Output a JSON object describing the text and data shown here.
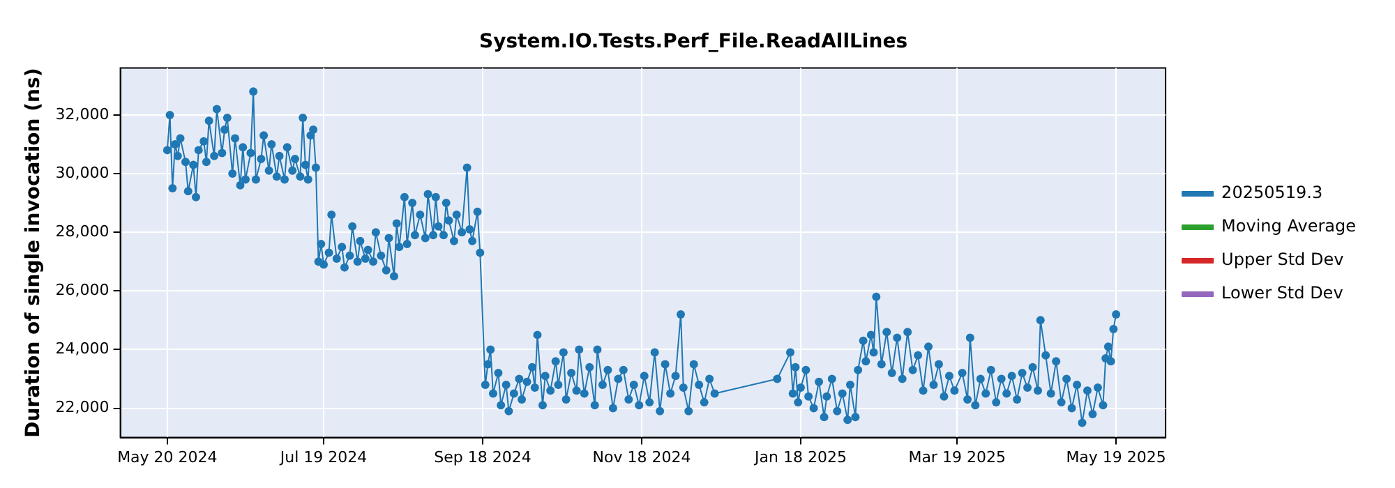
{
  "chart_data": {
    "type": "line",
    "title": "System.IO.Tests.Perf_File.ReadAllLines",
    "ylabel": "Duration of single invocation (ns)",
    "xlim": [
      "2024-05-02",
      "2025-06-07"
    ],
    "xticks": [
      {
        "value": "2024-05-20",
        "label": "May 20 2024"
      },
      {
        "value": "2024-07-19",
        "label": "Jul 19 2024"
      },
      {
        "value": "2024-09-18",
        "label": "Sep 18 2024"
      },
      {
        "value": "2024-11-18",
        "label": "Nov 18 2024"
      },
      {
        "value": "2025-01-18",
        "label": "Jan 18 2025"
      },
      {
        "value": "2025-03-19",
        "label": "Mar 19 2025"
      },
      {
        "value": "2025-05-19",
        "label": "May 19 2025"
      }
    ],
    "ylim": [
      21000,
      33600
    ],
    "yticks": [
      {
        "value": 22000,
        "label": "22,000"
      },
      {
        "value": 24000,
        "label": "24,000"
      },
      {
        "value": 26000,
        "label": "26,000"
      },
      {
        "value": 28000,
        "label": "28,000"
      },
      {
        "value": 30000,
        "label": "30,000"
      },
      {
        "value": 32000,
        "label": "32,000"
      }
    ],
    "grid": true,
    "legend": "right",
    "marker": "circle",
    "line_style": "solid",
    "series": [
      {
        "name": "20250519.3",
        "color": "#1f77b4",
        "x": [
          "2024-05-20",
          "2024-05-21",
          "2024-05-22",
          "2024-05-23",
          "2024-05-24",
          "2024-05-25",
          "2024-05-27",
          "2024-05-28",
          "2024-05-30",
          "2024-05-31",
          "2024-06-01",
          "2024-06-03",
          "2024-06-04",
          "2024-06-05",
          "2024-06-07",
          "2024-06-08",
          "2024-06-10",
          "2024-06-11",
          "2024-06-12",
          "2024-06-14",
          "2024-06-15",
          "2024-06-17",
          "2024-06-18",
          "2024-06-19",
          "2024-06-21",
          "2024-06-22",
          "2024-06-23",
          "2024-06-25",
          "2024-06-26",
          "2024-06-28",
          "2024-06-29",
          "2024-07-01",
          "2024-07-02",
          "2024-07-04",
          "2024-07-05",
          "2024-07-07",
          "2024-07-08",
          "2024-07-10",
          "2024-07-11",
          "2024-07-12",
          "2024-07-13",
          "2024-07-14",
          "2024-07-15",
          "2024-07-16",
          "2024-07-17",
          "2024-07-18",
          "2024-07-19",
          "2024-07-21",
          "2024-07-22",
          "2024-07-24",
          "2024-07-26",
          "2024-07-27",
          "2024-07-29",
          "2024-07-30",
          "2024-08-01",
          "2024-08-02",
          "2024-08-04",
          "2024-08-05",
          "2024-08-07",
          "2024-08-08",
          "2024-08-10",
          "2024-08-12",
          "2024-08-13",
          "2024-08-15",
          "2024-08-16",
          "2024-08-17",
          "2024-08-19",
          "2024-08-20",
          "2024-08-22",
          "2024-08-23",
          "2024-08-25",
          "2024-08-27",
          "2024-08-28",
          "2024-08-30",
          "2024-08-31",
          "2024-09-01",
          "2024-09-03",
          "2024-09-04",
          "2024-09-05",
          "2024-09-07",
          "2024-09-08",
          "2024-09-10",
          "2024-09-12",
          "2024-09-13",
          "2024-09-14",
          "2024-09-16",
          "2024-09-17",
          "2024-09-19",
          "2024-09-20",
          "2024-09-21",
          "2024-09-22",
          "2024-09-24",
          "2024-09-25",
          "2024-09-27",
          "2024-09-28",
          "2024-09-30",
          "2024-10-02",
          "2024-10-03",
          "2024-10-05",
          "2024-10-07",
          "2024-10-08",
          "2024-10-09",
          "2024-10-11",
          "2024-10-12",
          "2024-10-14",
          "2024-10-16",
          "2024-10-17",
          "2024-10-19",
          "2024-10-20",
          "2024-10-22",
          "2024-10-24",
          "2024-10-25",
          "2024-10-27",
          "2024-10-29",
          "2024-10-31",
          "2024-11-01",
          "2024-11-03",
          "2024-11-05",
          "2024-11-07",
          "2024-11-09",
          "2024-11-11",
          "2024-11-13",
          "2024-11-15",
          "2024-11-17",
          "2024-11-19",
          "2024-11-21",
          "2024-11-23",
          "2024-11-25",
          "2024-11-27",
          "2024-11-29",
          "2024-12-01",
          "2024-12-03",
          "2024-12-04",
          "2024-12-06",
          "2024-12-08",
          "2024-12-10",
          "2024-12-12",
          "2024-12-14",
          "2024-12-16",
          "2025-01-09",
          "2025-01-14",
          "2025-01-15",
          "2025-01-16",
          "2025-01-17",
          "2025-01-18",
          "2025-01-20",
          "2025-01-21",
          "2025-01-23",
          "2025-01-25",
          "2025-01-27",
          "2025-01-28",
          "2025-01-30",
          "2025-02-01",
          "2025-02-03",
          "2025-02-05",
          "2025-02-06",
          "2025-02-08",
          "2025-02-09",
          "2025-02-11",
          "2025-02-12",
          "2025-02-14",
          "2025-02-15",
          "2025-02-16",
          "2025-02-18",
          "2025-02-20",
          "2025-02-22",
          "2025-02-24",
          "2025-02-26",
          "2025-02-28",
          "2025-03-02",
          "2025-03-04",
          "2025-03-06",
          "2025-03-08",
          "2025-03-10",
          "2025-03-12",
          "2025-03-14",
          "2025-03-16",
          "2025-03-18",
          "2025-03-21",
          "2025-03-23",
          "2025-03-24",
          "2025-03-26",
          "2025-03-28",
          "2025-03-30",
          "2025-04-01",
          "2025-04-03",
          "2025-04-05",
          "2025-04-07",
          "2025-04-09",
          "2025-04-11",
          "2025-04-13",
          "2025-04-15",
          "2025-04-17",
          "2025-04-19",
          "2025-04-20",
          "2025-04-22",
          "2025-04-24",
          "2025-04-26",
          "2025-04-28",
          "2025-04-30",
          "2025-05-02",
          "2025-05-04",
          "2025-05-06",
          "2025-05-08",
          "2025-05-10",
          "2025-05-12",
          "2025-05-14",
          "2025-05-15",
          "2025-05-16",
          "2025-05-17",
          "2025-05-18",
          "2025-05-19"
        ],
        "values": [
          30800,
          32000,
          29500,
          31000,
          30600,
          31200,
          30400,
          29400,
          30300,
          29200,
          30800,
          31100,
          30400,
          31800,
          30600,
          32200,
          30700,
          31500,
          31900,
          30000,
          31200,
          29600,
          30900,
          29800,
          30700,
          32800,
          29800,
          30500,
          31300,
          30100,
          31000,
          29900,
          30600,
          29800,
          30900,
          30100,
          30500,
          29900,
          31900,
          30300,
          29800,
          31300,
          31500,
          30200,
          27000,
          27600,
          26900,
          27300,
          28600,
          27100,
          27500,
          26800,
          27200,
          28200,
          27000,
          27700,
          27100,
          27400,
          27000,
          28000,
          27200,
          26700,
          27800,
          26500,
          28300,
          27500,
          29200,
          27600,
          29000,
          27900,
          28600,
          27800,
          29300,
          27900,
          29200,
          28200,
          27900,
          29000,
          28400,
          27700,
          28600,
          28000,
          30200,
          28100,
          27700,
          28700,
          27300,
          22800,
          23500,
          24000,
          22500,
          23200,
          22100,
          22800,
          21900,
          22500,
          23000,
          22300,
          22900,
          23400,
          22700,
          24500,
          22100,
          23100,
          22600,
          23600,
          22800,
          23900,
          22300,
          23200,
          22600,
          24000,
          22500,
          23400,
          22100,
          24000,
          22800,
          23300,
          22000,
          23000,
          23300,
          22300,
          22800,
          22100,
          23100,
          22200,
          23900,
          21900,
          23500,
          22500,
          23100,
          25200,
          22700,
          21900,
          23500,
          22800,
          22200,
          23000,
          22500,
          23000,
          23900,
          22500,
          23400,
          22200,
          22700,
          23300,
          22400,
          22000,
          22900,
          21700,
          22400,
          23000,
          21900,
          22500,
          21600,
          22800,
          21700,
          23300,
          24300,
          23600,
          24500,
          23900,
          25800,
          23500,
          24600,
          23200,
          24400,
          23000,
          24600,
          23300,
          23800,
          22600,
          24100,
          22800,
          23500,
          22400,
          23100,
          22600,
          23200,
          22300,
          24400,
          22100,
          23000,
          22500,
          23300,
          22200,
          23000,
          22500,
          23100,
          22300,
          23200,
          22700,
          23400,
          22600,
          25000,
          23800,
          22500,
          23600,
          22200,
          23000,
          22000,
          22800,
          21500,
          22600,
          21800,
          22700,
          22100,
          23700,
          24100,
          23600,
          24700,
          25200
        ]
      },
      {
        "name": "Moving Average",
        "color": "#2ca02c"
      },
      {
        "name": "Upper Std Dev",
        "color": "#d62728"
      },
      {
        "name": "Lower Std Dev",
        "color": "#9467bd"
      }
    ]
  }
}
